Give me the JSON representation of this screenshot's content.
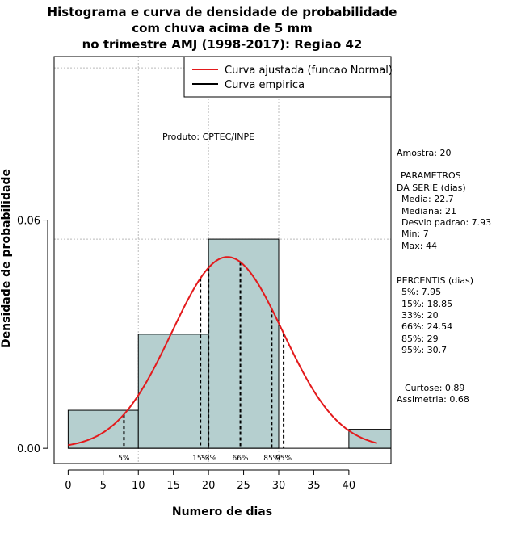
{
  "chart_data": {
    "type": "bar",
    "title_lines": [
      "Histograma e curva de densidade de probabilidade",
      "com chuva acima de 5 mm",
      "no trimestre AMJ (1998-2017): Regiao 42"
    ],
    "xlabel": "Numero de dias",
    "ylabel": "Densidade de probabilidade",
    "xlim": [
      -2,
      46
    ],
    "ylim": [
      -0.004,
      0.103
    ],
    "x_ticks": [
      0,
      5,
      10,
      15,
      20,
      25,
      30,
      35,
      40
    ],
    "x_tick_labels": [
      "0",
      "5",
      "10",
      "15",
      "20",
      "25",
      "30",
      "35",
      "40"
    ],
    "y_ticks": [
      0.0,
      0.06
    ],
    "y_tick_labels": [
      "0.00",
      "0.06"
    ],
    "grid_x": [
      10,
      20,
      30
    ],
    "grid_y": [
      0.055,
      0.1
    ],
    "bins": [
      {
        "from": 0,
        "to": 10,
        "density": 0.01
      },
      {
        "from": 10,
        "to": 20,
        "density": 0.03
      },
      {
        "from": 20,
        "to": 30,
        "density": 0.055
      },
      {
        "from": 30,
        "to": 40,
        "density": 0.0
      },
      {
        "from": 40,
        "to": 46,
        "density": 0.005
      }
    ],
    "normal_curve": {
      "mean": 22.7,
      "sd": 7.93,
      "from": 0,
      "to": 44
    },
    "percentile_lines": [
      {
        "label": "5%",
        "x": 7.95
      },
      {
        "label": "15%",
        "x": 18.85
      },
      {
        "label": "33%",
        "x": 20
      },
      {
        "label": "66%",
        "x": 24.54
      },
      {
        "label": "85%",
        "x": 29
      },
      {
        "label": "95%",
        "x": 30.7
      }
    ],
    "legend": [
      {
        "label": "Curva ajustada (funcao Normal)",
        "color": "#e31a1c"
      },
      {
        "label": "Curva empirica",
        "color": "#000000"
      }
    ],
    "legend_position": "top-right",
    "annotation": "Produto: CPTEC/INPE",
    "colors": {
      "bar_fill": "#b5cfcf",
      "curve": "#e31a1c",
      "grid": "#bbbbbb"
    }
  },
  "side_panel": {
    "amostra": "Amostra: 20",
    "param_header_1": "PARAMETROS",
    "param_header_2": "DA SERIE (dias)",
    "media": "Media: 22.7",
    "mediana": "Mediana: 21",
    "desvio": "Desvio padrao: 7.93",
    "min": "Min: 7",
    "max": "Max: 44",
    "perc_header": "PERCENTIS (dias)",
    "p5": "5%: 7.95",
    "p15": "15%: 18.85",
    "p33": "33%: 20",
    "p66": "66%: 24.54",
    "p85": "85%: 29",
    "p95": "95%: 30.7",
    "curtose": "Curtose: 0.89",
    "assimetria": "Assimetria: 0.68"
  }
}
